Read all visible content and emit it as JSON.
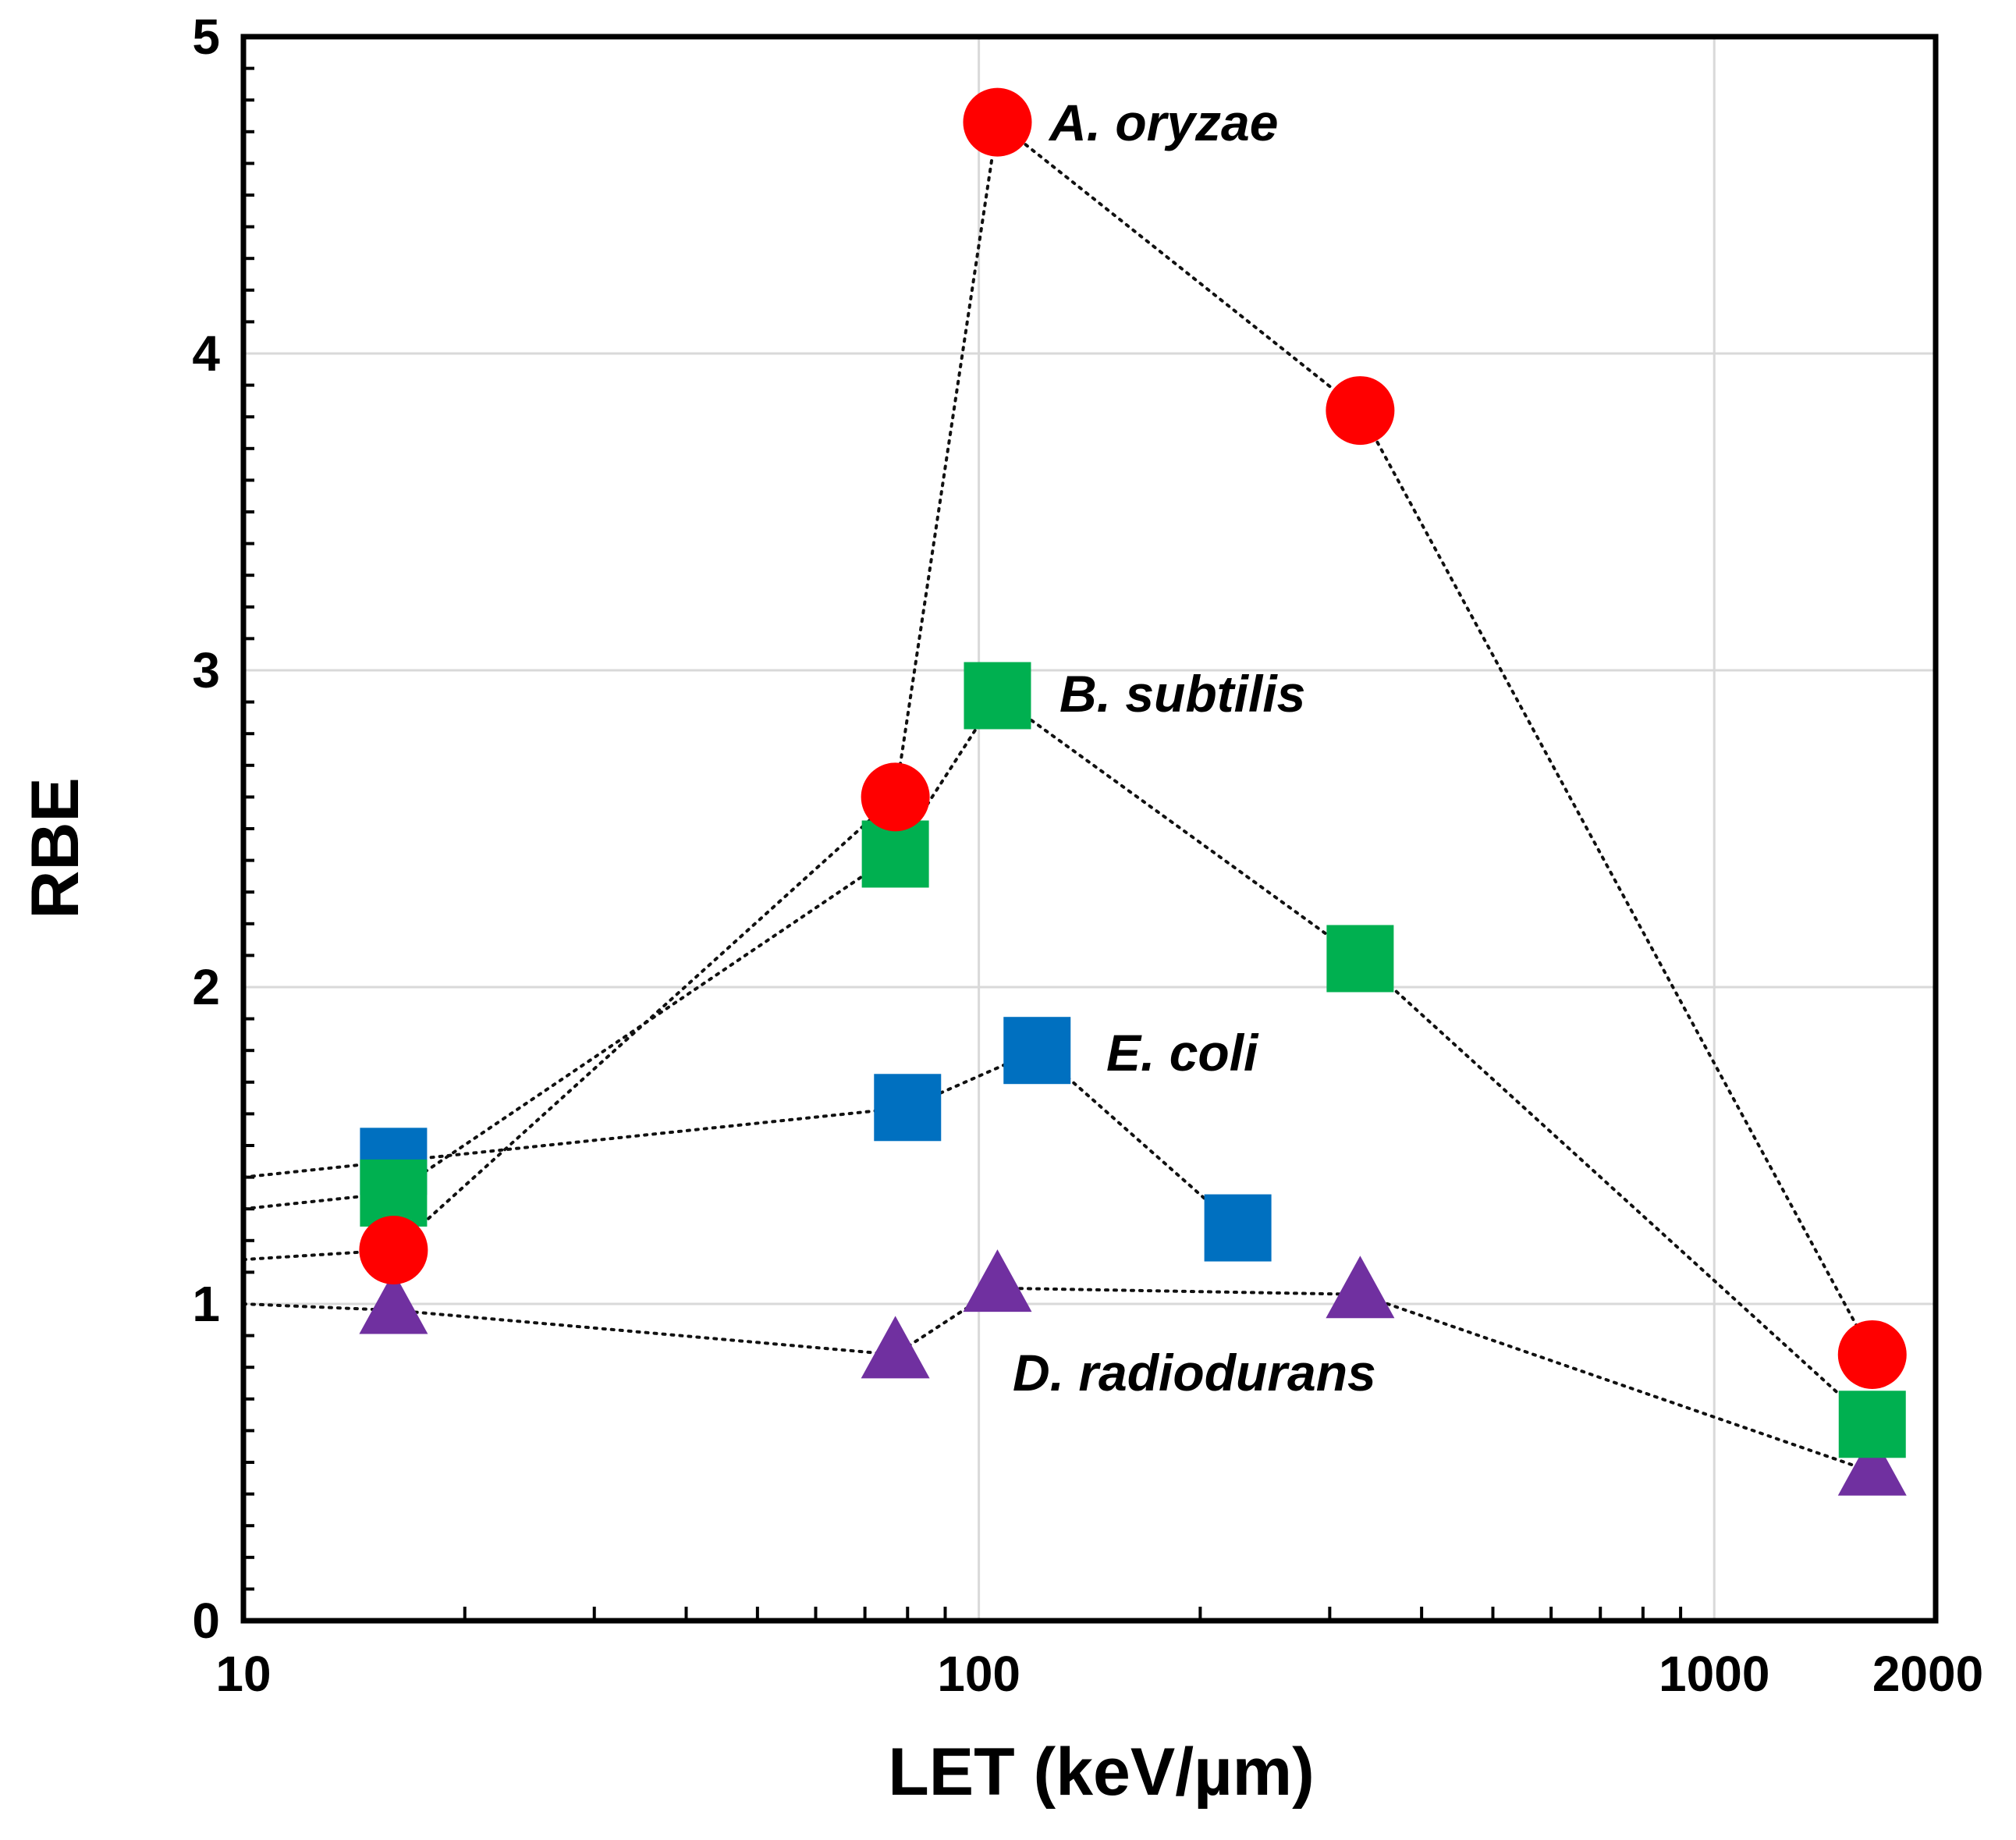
{
  "chart_data": {
    "type": "scatter",
    "title": "",
    "xlabel": "LET (keV/µm)",
    "ylabel": "RBE",
    "xscale": "log",
    "xlim": [
      10,
      2000
    ],
    "ylim": [
      0,
      5
    ],
    "grid": true,
    "x_ticks": [
      {
        "value": 10,
        "label": "10"
      },
      {
        "value": 100,
        "label": "100"
      },
      {
        "value": 1000,
        "label": "1000"
      },
      {
        "value": 2000,
        "label": "2000"
      }
    ],
    "y_ticks": [
      {
        "value": 0,
        "label": "0"
      },
      {
        "value": 1,
        "label": "1"
      },
      {
        "value": 2,
        "label": "2"
      },
      {
        "value": 3,
        "label": "3"
      },
      {
        "value": 4,
        "label": "4"
      },
      {
        "value": 5,
        "label": "5"
      }
    ],
    "series": [
      {
        "name": "A. oryzae",
        "label_text": "A. oryzae",
        "marker": "circle",
        "color": "#ff0000",
        "y_at_left_edge": 1.14,
        "points": [
          [
            16,
            1.17
          ],
          [
            77,
            2.6
          ],
          [
            106,
            4.73
          ],
          [
            330,
            3.82
          ],
          [
            1640,
            0.84
          ]
        ]
      },
      {
        "name": "B. subtilis",
        "label_text": "B. subtilis",
        "marker": "square",
        "color": "#00b050",
        "y_at_left_edge": 1.3,
        "points": [
          [
            16,
            1.35
          ],
          [
            77,
            2.42
          ],
          [
            106,
            2.92
          ],
          [
            330,
            2.09
          ],
          [
            1640,
            0.62
          ]
        ]
      },
      {
        "name": "E. coli",
        "label_text": "E. coli",
        "marker": "square",
        "color": "#0070c0",
        "y_at_left_edge": 1.4,
        "points": [
          [
            16,
            1.45
          ],
          [
            80,
            1.62
          ],
          [
            120,
            1.8
          ],
          [
            225,
            1.24
          ]
        ]
      },
      {
        "name": "D. radiodurans",
        "label_text": "D. radiodurans",
        "marker": "triangle",
        "color": "#7030a0",
        "y_at_left_edge": 1.0,
        "points": [
          [
            16,
            0.98
          ],
          [
            77,
            0.84
          ],
          [
            106,
            1.05
          ],
          [
            330,
            1.03
          ],
          [
            1640,
            0.47
          ]
        ]
      }
    ]
  }
}
